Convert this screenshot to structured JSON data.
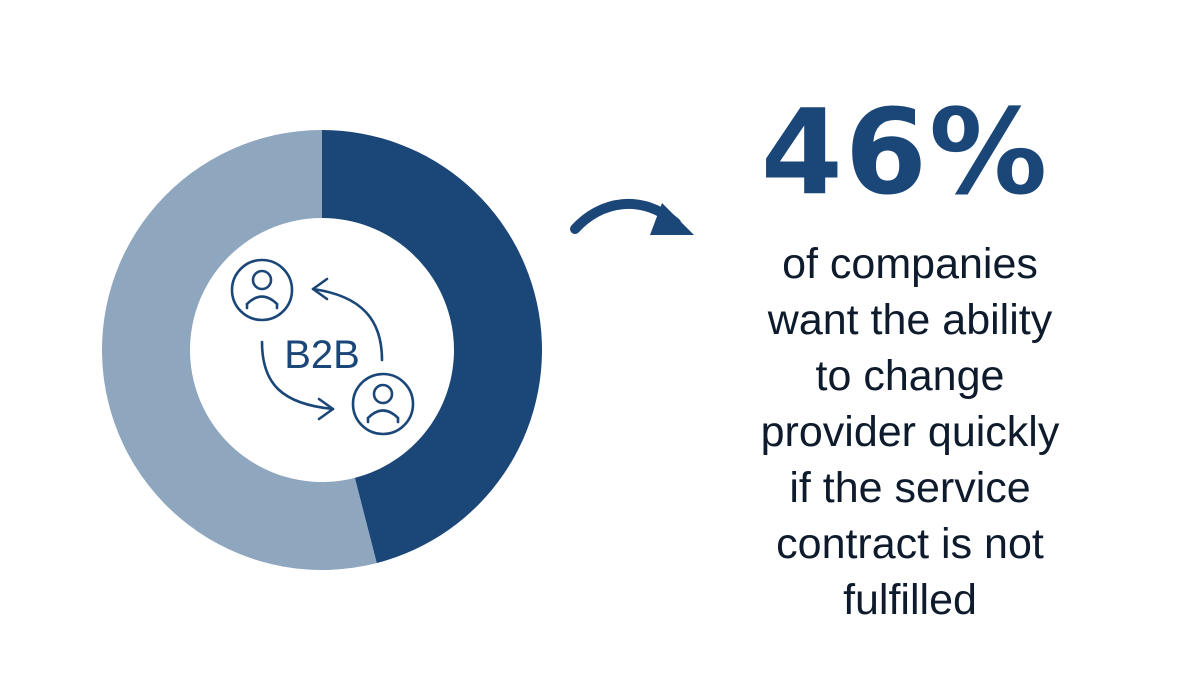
{
  "chart_data": {
    "type": "pie",
    "style": "donut",
    "slices": [
      {
        "value": 46,
        "color": "#1b4678"
      },
      {
        "value": 54,
        "color": "#8fa6bf"
      }
    ],
    "center_label": "B2B",
    "center_icons": [
      "person-icon",
      "person-icon",
      "arrow-curved-left-icon",
      "arrow-curved-right-icon"
    ]
  },
  "stat": {
    "value": "46%",
    "caption_lines": [
      "of companies",
      "want the ability",
      "to change",
      "provider quickly",
      "if the service",
      "contract is not",
      "fulfilled"
    ]
  },
  "colors": {
    "primary": "#1b4678",
    "secondary": "#8fa6bf",
    "icon": "#1b4678",
    "text": "#0e1b2c"
  },
  "icons": {
    "pointer": "curved-arrow-icon"
  }
}
